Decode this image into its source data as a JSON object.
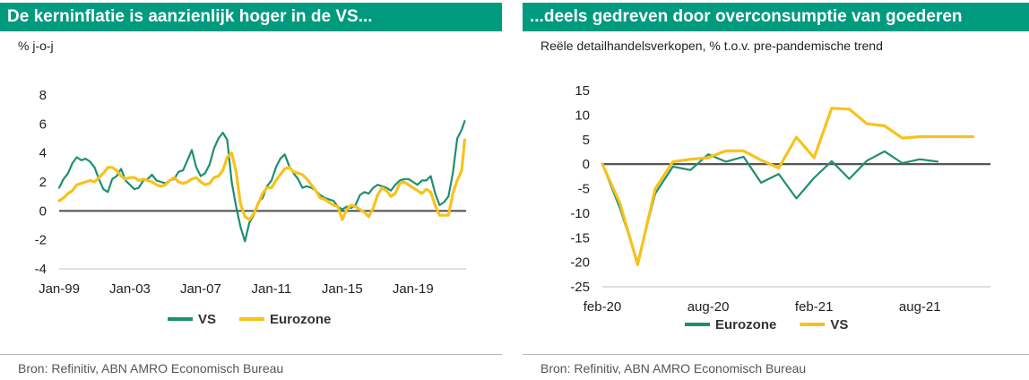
{
  "left_panel": {
    "title": "De kerninflatie is aanzienlijk hoger in de VS...",
    "subtitle": "% j-o-j",
    "source": "Bron: Refinitiv, ABN AMRO  Economisch Bureau"
  },
  "right_panel": {
    "title": "...deels gedreven door overconsumptie van goederen",
    "subtitle": "Reële detailhandelsverkopen, % t.o.v. pre-pandemische trend",
    "source": "Bron: Refinitiv, ABN AMRO  Economisch Bureau"
  },
  "colors": {
    "teal": "#1e8f73",
    "yellow": "#f7c21b",
    "zero_line": "#555555",
    "axis": "#bfbfbf",
    "title_bg": "#009a7f"
  },
  "chart_data": [
    {
      "type": "line",
      "title": "De kerninflatie is aanzienlijk hoger in de VS...",
      "ylabel": "% j-o-j",
      "ylim": [
        -4,
        8
      ],
      "yticks": [
        8,
        6,
        4,
        2,
        0,
        -2,
        -4
      ],
      "xlim": [
        1999.0,
        2022.0
      ],
      "xticks": [
        {
          "label": "Jan-99",
          "x": 1999.0
        },
        {
          "label": "Jan-03",
          "x": 2003.0
        },
        {
          "label": "Jan-07",
          "x": 2007.0
        },
        {
          "label": "Jan-11",
          "x": 2011.0
        },
        {
          "label": "Jan-15",
          "x": 2015.0
        },
        {
          "label": "Jan-19",
          "x": 2019.0
        }
      ],
      "legend": [
        "VS",
        "Eurozone"
      ],
      "series": [
        {
          "name": "VS",
          "color": "teal",
          "x": [
            1999.0,
            1999.25,
            1999.5,
            1999.75,
            2000.0,
            2000.25,
            2000.5,
            2000.75,
            2001.0,
            2001.25,
            2001.5,
            2001.75,
            2002.0,
            2002.25,
            2002.5,
            2002.75,
            2003.0,
            2003.25,
            2003.5,
            2003.75,
            2004.0,
            2004.25,
            2004.5,
            2004.75,
            2005.0,
            2005.25,
            2005.5,
            2005.75,
            2006.0,
            2006.25,
            2006.5,
            2006.75,
            2007.0,
            2007.25,
            2007.5,
            2007.75,
            2008.0,
            2008.25,
            2008.5,
            2008.75,
            2009.0,
            2009.25,
            2009.5,
            2009.75,
            2010.0,
            2010.25,
            2010.5,
            2010.75,
            2011.0,
            2011.25,
            2011.5,
            2011.75,
            2012.0,
            2012.25,
            2012.5,
            2012.75,
            2013.0,
            2013.25,
            2013.5,
            2013.75,
            2014.0,
            2014.25,
            2014.5,
            2014.75,
            2015.0,
            2015.25,
            2015.5,
            2015.75,
            2016.0,
            2016.25,
            2016.5,
            2016.75,
            2017.0,
            2017.25,
            2017.5,
            2017.75,
            2018.0,
            2018.25,
            2018.5,
            2018.75,
            2019.0,
            2019.25,
            2019.5,
            2019.75,
            2020.0,
            2020.25,
            2020.5,
            2020.75,
            2021.0,
            2021.25,
            2021.5,
            2021.75,
            2021.92
          ],
          "values": [
            1.6,
            2.2,
            2.6,
            3.3,
            3.7,
            3.5,
            3.6,
            3.4,
            3.0,
            2.2,
            1.5,
            1.3,
            2.2,
            2.4,
            2.9,
            2.1,
            1.8,
            1.5,
            1.6,
            2.1,
            2.2,
            2.5,
            2.1,
            2.0,
            1.9,
            2.1,
            2.2,
            2.7,
            2.8,
            3.5,
            4.2,
            3.0,
            2.4,
            2.6,
            3.2,
            4.3,
            5.0,
            5.4,
            4.9,
            2.0,
            0.3,
            -1.1,
            -2.1,
            -0.8,
            -0.3,
            0.6,
            0.9,
            1.7,
            2.1,
            3.0,
            3.6,
            3.9,
            3.1,
            2.6,
            2.2,
            1.6,
            1.7,
            1.6,
            1.4,
            1.1,
            0.9,
            0.8,
            0.7,
            0.3,
            0.1,
            0.3,
            0.2,
            0.4,
            1.1,
            1.3,
            1.2,
            1.6,
            1.8,
            1.7,
            1.6,
            1.4,
            1.8,
            2.1,
            2.2,
            2.2,
            2.0,
            1.8,
            2.1,
            2.1,
            2.4,
            1.2,
            0.4,
            0.6,
            1.0,
            2.6,
            5.0,
            5.6,
            6.2
          ]
        },
        {
          "name": "Eurozone",
          "color": "yellow",
          "x": [
            1999.0,
            1999.25,
            1999.5,
            1999.75,
            2000.0,
            2000.25,
            2000.5,
            2000.75,
            2001.0,
            2001.25,
            2001.5,
            2001.75,
            2002.0,
            2002.25,
            2002.5,
            2002.75,
            2003.0,
            2003.25,
            2003.5,
            2003.75,
            2004.0,
            2004.25,
            2004.5,
            2004.75,
            2005.0,
            2005.25,
            2005.5,
            2005.75,
            2006.0,
            2006.25,
            2006.5,
            2006.75,
            2007.0,
            2007.25,
            2007.5,
            2007.75,
            2008.0,
            2008.25,
            2008.5,
            2008.75,
            2009.0,
            2009.25,
            2009.5,
            2009.75,
            2010.0,
            2010.25,
            2010.5,
            2010.75,
            2011.0,
            2011.25,
            2011.5,
            2011.75,
            2012.0,
            2012.25,
            2012.5,
            2012.75,
            2013.0,
            2013.25,
            2013.5,
            2013.75,
            2014.0,
            2014.25,
            2014.5,
            2014.75,
            2015.0,
            2015.25,
            2015.5,
            2015.75,
            2016.0,
            2016.25,
            2016.5,
            2016.75,
            2017.0,
            2017.25,
            2017.5,
            2017.75,
            2018.0,
            2018.25,
            2018.5,
            2018.75,
            2019.0,
            2019.25,
            2019.5,
            2019.75,
            2020.0,
            2020.25,
            2020.5,
            2020.75,
            2021.0,
            2021.25,
            2021.5,
            2021.75,
            2021.92
          ],
          "values": [
            0.7,
            0.9,
            1.2,
            1.4,
            1.8,
            1.9,
            2.0,
            2.1,
            2.0,
            2.3,
            2.6,
            3.0,
            3.0,
            2.8,
            2.4,
            2.2,
            2.3,
            2.3,
            2.1,
            2.2,
            2.1,
            2.0,
            1.8,
            1.7,
            1.8,
            2.1,
            2.3,
            2.0,
            1.9,
            2.0,
            2.2,
            2.3,
            2.0,
            1.8,
            1.9,
            2.3,
            2.4,
            2.8,
            3.7,
            4.0,
            2.7,
            0.5,
            -0.4,
            -0.6,
            -0.2,
            0.5,
            1.2,
            1.6,
            1.6,
            2.1,
            2.5,
            2.9,
            3.0,
            2.7,
            2.6,
            2.5,
            2.2,
            1.8,
            1.4,
            0.9,
            0.8,
            0.6,
            0.4,
            0.3,
            -0.6,
            0.1,
            0.4,
            0.3,
            0.1,
            -0.1,
            -0.4,
            0.2,
            1.1,
            1.6,
            1.4,
            1.0,
            1.2,
            1.9,
            2.0,
            1.8,
            1.6,
            1.4,
            1.2,
            1.5,
            1.3,
            0.4,
            -0.3,
            -0.3,
            -0.3,
            1.2,
            2.1,
            2.8,
            4.9
          ]
        }
      ]
    },
    {
      "type": "line",
      "title": "...deels gedreven door overconsumptie van goederen",
      "ylabel": "Reële detailhandelsverkopen, % t.o.v. pre-pandemische trend",
      "ylim": [
        -25,
        15
      ],
      "yticks": [
        15,
        10,
        5,
        0,
        -5,
        -10,
        -15,
        -20,
        -25
      ],
      "xlim": [
        0,
        22
      ],
      "xticks": [
        {
          "label": "feb-20",
          "x": 0
        },
        {
          "label": "aug-20",
          "x": 6
        },
        {
          "label": "feb-21",
          "x": 12
        },
        {
          "label": "aug-21",
          "x": 18
        }
      ],
      "legend": [
        "Eurozone",
        "VS"
      ],
      "series": [
        {
          "name": "Eurozone",
          "color": "teal",
          "x": [
            0,
            1,
            2,
            3,
            4,
            5,
            6,
            7,
            8,
            9,
            10,
            11,
            12,
            13,
            14,
            15,
            16,
            17,
            18,
            19
          ],
          "values": [
            0,
            -9,
            -20,
            -6,
            -0.5,
            -1.2,
            2.0,
            0.5,
            1.5,
            -3.8,
            -2.0,
            -7.0,
            -2.8,
            0.6,
            -3.0,
            0.7,
            2.6,
            0.2,
            1.0,
            0.5
          ]
        },
        {
          "name": "VS",
          "color": "yellow",
          "x": [
            0,
            1,
            2,
            3,
            4,
            5,
            6,
            7,
            8,
            9,
            10,
            11,
            12,
            13,
            14,
            15,
            16,
            17,
            18,
            19,
            20,
            21
          ],
          "values": [
            0,
            -8,
            -20.5,
            -5,
            0.5,
            1.0,
            1.3,
            2.7,
            2.7,
            0.8,
            -0.8,
            5.5,
            1.3,
            11.4,
            11.2,
            8.2,
            7.8,
            5.3,
            5.6,
            5.6,
            5.6,
            5.6
          ]
        }
      ]
    }
  ]
}
